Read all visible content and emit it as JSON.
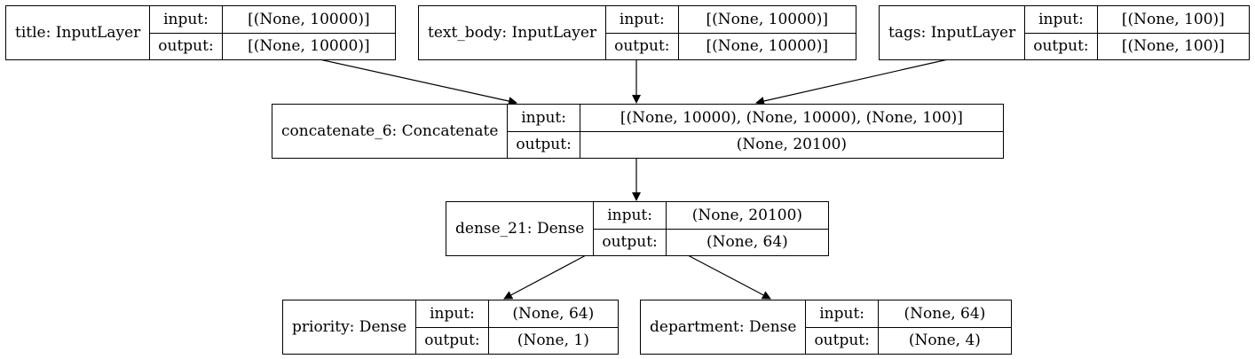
{
  "nodes": [
    {
      "id": "title",
      "name": "title: InputLayer",
      "input_label": "input:",
      "output_label": "output:",
      "input": "[(None, 10000)]",
      "output": "[(None, 10000)]"
    },
    {
      "id": "text_body",
      "name": "text_body: InputLayer",
      "input_label": "input:",
      "output_label": "output:",
      "input": "[(None, 10000)]",
      "output": "[(None, 10000)]"
    },
    {
      "id": "tags",
      "name": "tags: InputLayer",
      "input_label": "input:",
      "output_label": "output:",
      "input": "[(None, 100)]",
      "output": "[(None, 100)]"
    },
    {
      "id": "concatenate_6",
      "name": "concatenate_6: Concatenate",
      "input_label": "input:",
      "output_label": "output:",
      "input": "[(None, 10000), (None, 10000), (None, 100)]",
      "output": "(None, 20100)"
    },
    {
      "id": "dense_21",
      "name": "dense_21: Dense",
      "input_label": "input:",
      "output_label": "output:",
      "input": "(None, 20100)",
      "output": "(None, 64)"
    },
    {
      "id": "priority",
      "name": "priority: Dense",
      "input_label": "input:",
      "output_label": "output:",
      "input": "(None, 64)",
      "output": "(None, 1)"
    },
    {
      "id": "department",
      "name": "department: Dense",
      "input_label": "input:",
      "output_label": "output:",
      "input": "(None, 64)",
      "output": "(None, 4)"
    }
  ],
  "edges": [
    {
      "from": "title",
      "to": "concatenate_6"
    },
    {
      "from": "text_body",
      "to": "concatenate_6"
    },
    {
      "from": "tags",
      "to": "concatenate_6"
    },
    {
      "from": "concatenate_6",
      "to": "dense_21"
    },
    {
      "from": "dense_21",
      "to": "priority"
    },
    {
      "from": "dense_21",
      "to": "department"
    }
  ]
}
